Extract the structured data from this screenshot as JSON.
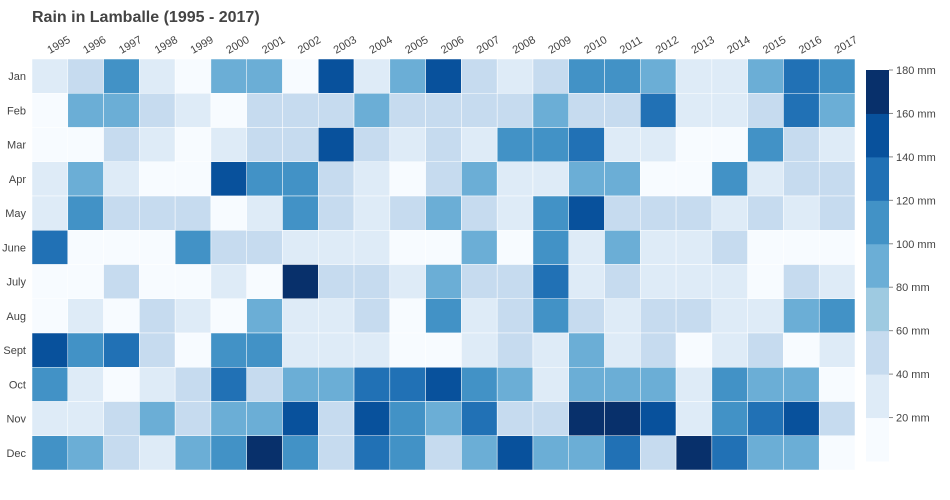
{
  "chart_data": {
    "type": "heatmap",
    "title": "Rain in Lamballe (1995 - 2017)",
    "x_categories": [
      "1995",
      "1996",
      "1997",
      "1998",
      "1999",
      "2000",
      "2001",
      "2002",
      "2003",
      "2004",
      "2005",
      "2006",
      "2007",
      "2008",
      "2009",
      "2010",
      "2011",
      "2012",
      "2013",
      "2014",
      "2015",
      "2016",
      "2017"
    ],
    "y_categories": [
      "Jan",
      "Feb",
      "Mar",
      "Apr",
      "May",
      "June",
      "July",
      "Aug",
      "Sept",
      "Oct",
      "Nov",
      "Dec"
    ],
    "values": [
      [
        30,
        50,
        100,
        30,
        10,
        80,
        80,
        10,
        140,
        30,
        80,
        140,
        50,
        30,
        50,
        100,
        100,
        80,
        30,
        30,
        80,
        120,
        100
      ],
      [
        10,
        80,
        80,
        50,
        30,
        10,
        50,
        50,
        50,
        80,
        50,
        50,
        50,
        50,
        80,
        50,
        50,
        120,
        30,
        30,
        50,
        120,
        80
      ],
      [
        10,
        10,
        50,
        30,
        10,
        30,
        50,
        50,
        140,
        50,
        30,
        50,
        30,
        100,
        100,
        120,
        30,
        30,
        10,
        10,
        100,
        50,
        30
      ],
      [
        30,
        80,
        30,
        10,
        10,
        140,
        100,
        100,
        50,
        30,
        10,
        50,
        80,
        30,
        30,
        80,
        80,
        10,
        10,
        100,
        30,
        50,
        50
      ],
      [
        30,
        100,
        50,
        50,
        50,
        10,
        30,
        100,
        50,
        30,
        50,
        80,
        50,
        30,
        100,
        140,
        50,
        50,
        50,
        30,
        50,
        30,
        50
      ],
      [
        120,
        10,
        10,
        10,
        100,
        50,
        50,
        30,
        30,
        30,
        10,
        10,
        80,
        10,
        100,
        30,
        80,
        30,
        30,
        50,
        10,
        10,
        10
      ],
      [
        10,
        10,
        50,
        10,
        10,
        30,
        10,
        180,
        50,
        50,
        30,
        80,
        50,
        50,
        120,
        30,
        50,
        30,
        30,
        30,
        10,
        50,
        30
      ],
      [
        10,
        30,
        10,
        50,
        30,
        10,
        80,
        30,
        30,
        50,
        10,
        100,
        30,
        50,
        100,
        50,
        30,
        50,
        50,
        30,
        30,
        80,
        100
      ],
      [
        140,
        100,
        120,
        50,
        10,
        100,
        100,
        30,
        30,
        30,
        10,
        10,
        30,
        50,
        30,
        80,
        30,
        50,
        10,
        30,
        50,
        10,
        30
      ],
      [
        100,
        30,
        10,
        30,
        50,
        120,
        50,
        80,
        80,
        120,
        120,
        140,
        100,
        80,
        30,
        80,
        80,
        80,
        30,
        100,
        80,
        80,
        10
      ],
      [
        30,
        30,
        50,
        80,
        50,
        80,
        80,
        140,
        50,
        140,
        100,
        80,
        120,
        50,
        50,
        180,
        180,
        140,
        30,
        100,
        120,
        140,
        50
      ],
      [
        100,
        80,
        50,
        30,
        80,
        100,
        180,
        100,
        50,
        120,
        100,
        50,
        80,
        140,
        80,
        80,
        120,
        50,
        180,
        120,
        80,
        80,
        10
      ]
    ],
    "color_scale": {
      "unit": "mm",
      "tick_labels": [
        "20 mm",
        "40 mm",
        "60 mm",
        "80 mm",
        "100 mm",
        "120 mm",
        "140 mm",
        "160 mm",
        "180 mm"
      ],
      "band_colors": [
        "#f7fbff",
        "#deebf7",
        "#c6dbef",
        "#9ecae1",
        "#6baed6",
        "#4292c6",
        "#2171b5",
        "#08519c",
        "#08306b"
      ],
      "range": [
        0,
        180
      ]
    },
    "legend_position": "right",
    "grid": false
  }
}
